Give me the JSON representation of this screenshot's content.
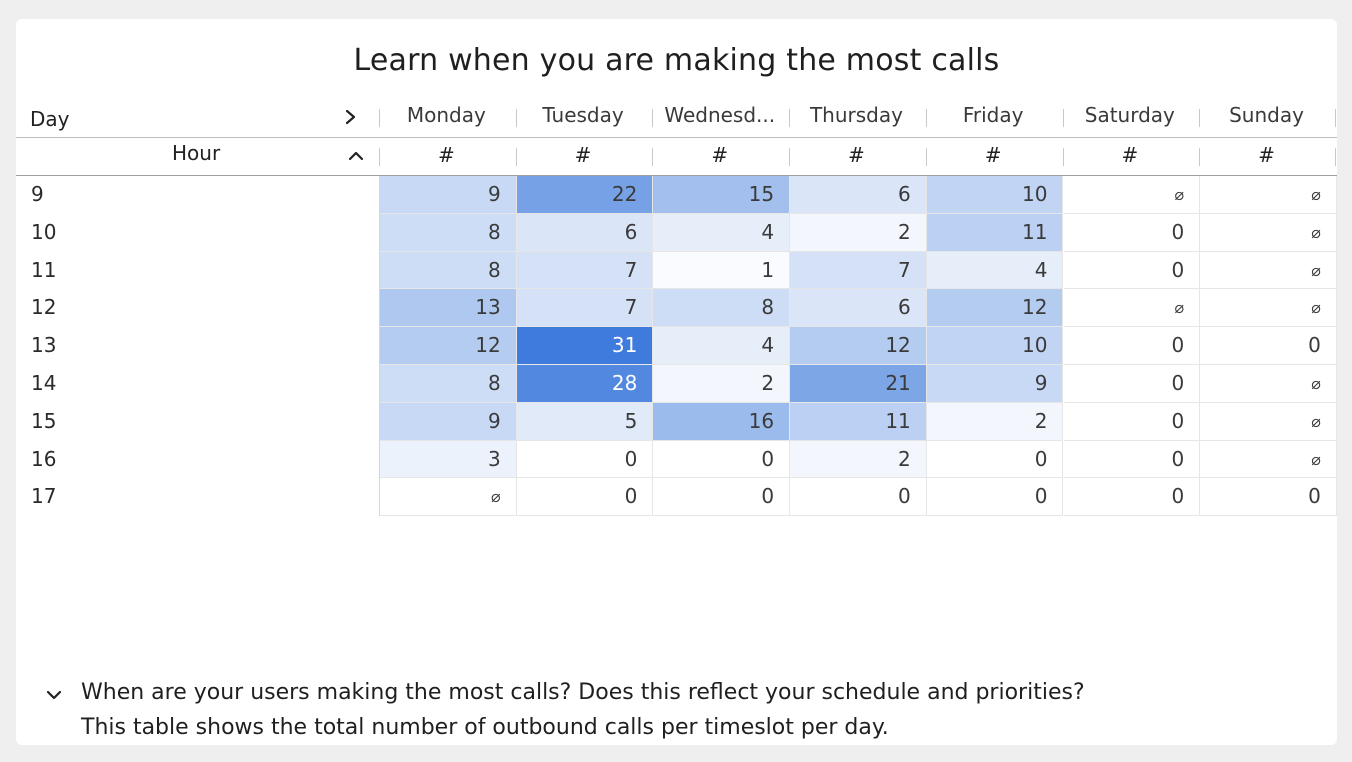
{
  "title": "Learn when you are making the most calls",
  "header": {
    "day_label": "Day",
    "hour_label": "Hour",
    "days": [
      "Monday",
      "Tuesday",
      "Wednesd...",
      "Thursday",
      "Friday",
      "Saturday",
      "Sunday"
    ],
    "measure": "#"
  },
  "hours": [
    "9",
    "10",
    "11",
    "12",
    "13",
    "14",
    "15",
    "16",
    "17"
  ],
  "table": [
    [
      "9",
      "22",
      "15",
      "6",
      "10",
      "⌀",
      "⌀"
    ],
    [
      "8",
      "6",
      "4",
      "2",
      "11",
      "0",
      "⌀"
    ],
    [
      "8",
      "7",
      "1",
      "7",
      "4",
      "0",
      "⌀"
    ],
    [
      "13",
      "7",
      "8",
      "6",
      "12",
      "⌀",
      "⌀"
    ],
    [
      "12",
      "31",
      "4",
      "12",
      "10",
      "0",
      "0"
    ],
    [
      "8",
      "28",
      "2",
      "21",
      "9",
      "0",
      "⌀"
    ],
    [
      "9",
      "5",
      "16",
      "11",
      "2",
      "0",
      "⌀"
    ],
    [
      "3",
      "0",
      "0",
      "2",
      "0",
      "0",
      "⌀"
    ],
    [
      "⌀",
      "0",
      "0",
      "0",
      "0",
      "0",
      "0"
    ]
  ],
  "heat_scale": {
    "min": 0,
    "max": 31,
    "low_color": "#ffffff",
    "high_color": "#3f7bdc"
  },
  "footer": {
    "line1": "When are your users making the most calls? Does this reflect your schedule and priorities?",
    "line2": "This table shows the total number of outbound calls per timeslot per day."
  },
  "icons": {
    "day_toggle": "chevron-right-icon",
    "hour_sort": "chevron-up-icon",
    "footer_toggle": "chevron-down-icon"
  }
}
